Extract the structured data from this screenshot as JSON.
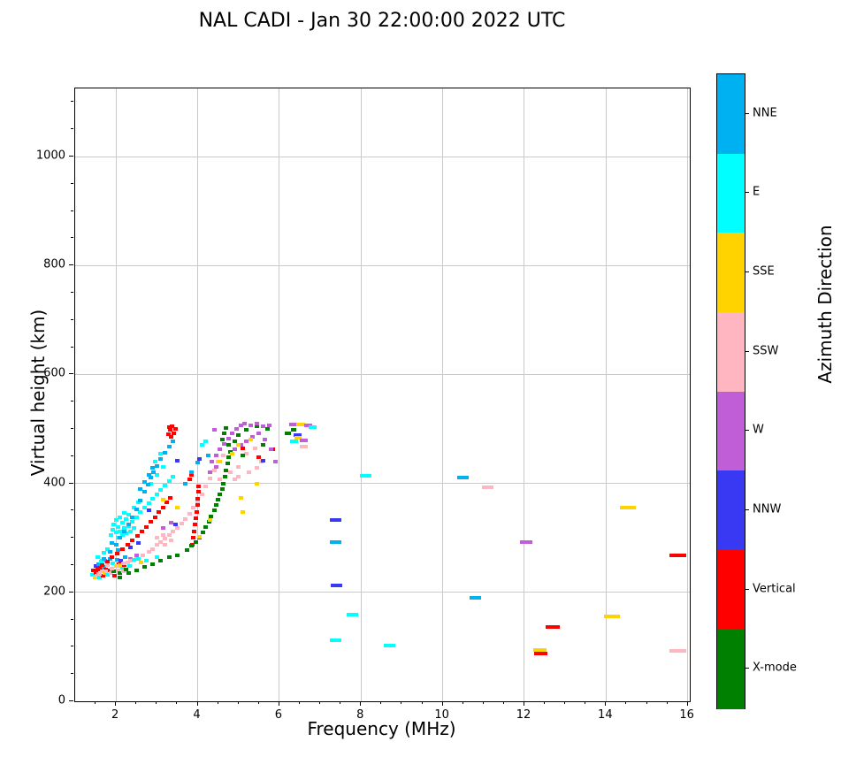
{
  "page": {
    "title": "NAL CADI - Jan 30 22:00:00 2022 UTC"
  },
  "chart_data": {
    "type": "scatter",
    "title": "NAL CADI - Jan 30 22:00:00 2022 UTC",
    "xlabel": "Frequency (MHz)",
    "ylabel": "Virtual height (km)",
    "colorbar_label": "Azimuth Direction",
    "xlim": [
      1.0,
      16.05
    ],
    "ylim": [
      0,
      1125
    ],
    "xticks": [
      2,
      4,
      6,
      8,
      10,
      12,
      14,
      16
    ],
    "yticks": [
      0,
      200,
      400,
      600,
      800,
      1000
    ],
    "x_minor_step": 0.5,
    "y_minor_step": 50,
    "grid": true,
    "legend_position": "right-colorbar",
    "point_units": [
      "frequency_MHz",
      "virtual_height_km",
      "azimuth_code",
      "optional_dash_width_px"
    ],
    "categories": [
      {
        "code": "NNE",
        "label": "NNE",
        "color": "#00b1f2"
      },
      {
        "code": "E",
        "label": "E",
        "color": "#00ffff"
      },
      {
        "code": "SSE",
        "label": "SSE",
        "color": "#ffd300"
      },
      {
        "code": "SSW",
        "label": "SSW",
        "color": "#ffb6c1"
      },
      {
        "code": "W",
        "label": "W",
        "color": "#bf5ed7"
      },
      {
        "code": "NNW",
        "label": "NNW",
        "color": "#3939f3"
      },
      {
        "code": "V",
        "label": "Vertical",
        "color": "#ff0000"
      },
      {
        "code": "X",
        "label": "X-mode",
        "color": "#008000"
      }
    ],
    "points": [
      [
        8.12,
        414,
        "E",
        13
      ],
      [
        7.38,
        332,
        "NNW",
        13
      ],
      [
        7.38,
        293,
        "NNE",
        13
      ],
      [
        7.4,
        213,
        "NNW",
        13
      ],
      [
        7.79,
        159,
        "E",
        13
      ],
      [
        7.38,
        112,
        "E",
        13
      ],
      [
        8.7,
        102,
        "E",
        13
      ],
      [
        10.5,
        411,
        "NNE",
        13
      ],
      [
        11.1,
        393,
        "SSW",
        13
      ],
      [
        12.04,
        293,
        "W",
        14
      ],
      [
        10.8,
        190,
        "NNE",
        13
      ],
      [
        12.69,
        137,
        "V",
        16
      ],
      [
        12.37,
        94,
        "SSE",
        15
      ],
      [
        12.4,
        88,
        "V",
        15
      ],
      [
        14.53,
        356,
        "SSE",
        18
      ],
      [
        15.75,
        268,
        "V",
        19
      ],
      [
        14.15,
        156,
        "SSE",
        18
      ],
      [
        15.75,
        93,
        "SSW",
        19
      ],
      [
        6.33,
        508,
        "W",
        9
      ],
      [
        6.52,
        508,
        "SSE",
        10
      ],
      [
        6.7,
        506,
        "W",
        9
      ],
      [
        6.82,
        503,
        "E",
        9
      ],
      [
        6.45,
        489,
        "NNW",
        9
      ],
      [
        6.45,
        483,
        "SSE",
        8
      ],
      [
        6.35,
        477,
        "E",
        9
      ],
      [
        6.6,
        479,
        "W",
        9
      ],
      [
        6.6,
        468,
        "SSW",
        9
      ],
      [
        6.2,
        492,
        "X",
        7
      ],
      [
        6.35,
        498,
        "X",
        6
      ],
      [
        1.42,
        232,
        "E"
      ],
      [
        1.45,
        240,
        "V"
      ],
      [
        1.48,
        228,
        "SSE"
      ],
      [
        1.5,
        236,
        "V"
      ],
      [
        1.5,
        248,
        "NNW"
      ],
      [
        1.52,
        230,
        "SSW"
      ],
      [
        1.55,
        242,
        "V"
      ],
      [
        1.57,
        252,
        "NNE"
      ],
      [
        1.58,
        233,
        "SSE"
      ],
      [
        1.6,
        228,
        "E"
      ],
      [
        1.62,
        245,
        "V"
      ],
      [
        1.63,
        256,
        "E"
      ],
      [
        1.65,
        238,
        "SSW"
      ],
      [
        1.68,
        230,
        "V"
      ],
      [
        1.7,
        247,
        "NNE"
      ],
      [
        1.72,
        236,
        "SSE"
      ],
      [
        1.73,
        258,
        "W"
      ],
      [
        1.75,
        242,
        "V"
      ],
      [
        1.78,
        232,
        "E"
      ],
      [
        1.8,
        250,
        "SSW"
      ],
      [
        1.82,
        240,
        "V"
      ],
      [
        1.85,
        262,
        "NNE"
      ],
      [
        1.87,
        235,
        "SSW"
      ],
      [
        1.9,
        244,
        "V"
      ],
      [
        1.92,
        254,
        "E"
      ],
      [
        1.95,
        238,
        "X"
      ],
      [
        1.97,
        230,
        "V"
      ],
      [
        2.0,
        248,
        "SSE"
      ],
      [
        2.02,
        260,
        "NNE"
      ],
      [
        2.05,
        240,
        "SSW"
      ],
      [
        2.08,
        252,
        "V"
      ],
      [
        2.1,
        235,
        "X"
      ],
      [
        2.12,
        258,
        "NNW"
      ],
      [
        2.15,
        245,
        "E"
      ],
      [
        2.18,
        238,
        "SSW"
      ],
      [
        2.2,
        250,
        "V"
      ],
      [
        2.22,
        264,
        "NNE"
      ],
      [
        2.25,
        242,
        "X"
      ],
      [
        2.28,
        255,
        "SSW"
      ],
      [
        2.3,
        236,
        "V"
      ],
      [
        2.33,
        248,
        "E"
      ],
      [
        2.35,
        262,
        "W"
      ],
      [
        1.6,
        233,
        "SSW"
      ],
      [
        1.75,
        238,
        "SSW"
      ],
      [
        1.9,
        243,
        "SSW"
      ],
      [
        2.05,
        248,
        "SSW"
      ],
      [
        2.2,
        253,
        "SSW"
      ],
      [
        2.35,
        258,
        "SSW"
      ],
      [
        2.5,
        263,
        "SSW"
      ],
      [
        2.65,
        268,
        "SSW"
      ],
      [
        2.8,
        274,
        "SSW"
      ],
      [
        2.9,
        280,
        "SSW"
      ],
      [
        3.0,
        287,
        "SSW"
      ],
      [
        3.1,
        293,
        "SSW"
      ],
      [
        3.2,
        299,
        "SSW"
      ],
      [
        3.3,
        305,
        "SSW"
      ],
      [
        3.4,
        311,
        "SSW"
      ],
      [
        3.5,
        318,
        "SSW"
      ],
      [
        3.6,
        326,
        "SSW"
      ],
      [
        3.7,
        334,
        "SSW"
      ],
      [
        3.8,
        344,
        "SSW"
      ],
      [
        3.9,
        355,
        "SSW"
      ],
      [
        4.0,
        367,
        "SSW"
      ],
      [
        4.1,
        380,
        "SSW"
      ],
      [
        4.2,
        394,
        "SSW"
      ],
      [
        4.3,
        409,
        "SSW"
      ],
      [
        4.4,
        424,
        "SSW"
      ],
      [
        3.0,
        300,
        "SSW"
      ],
      [
        3.15,
        305,
        "SSW"
      ],
      [
        3.35,
        295,
        "SSW"
      ],
      [
        3.2,
        288,
        "SSW"
      ],
      [
        4.5,
        440,
        "SSW"
      ],
      [
        4.62,
        452,
        "SSW"
      ],
      [
        4.8,
        420,
        "SSW"
      ],
      [
        5.0,
        430,
        "SSW"
      ],
      [
        5.2,
        455,
        "SSW"
      ],
      [
        5.4,
        464,
        "SSW"
      ],
      [
        5.55,
        440,
        "SSW"
      ],
      [
        5.0,
        412,
        "SSW"
      ],
      [
        4.55,
        408,
        "SSW"
      ],
      [
        4.9,
        408,
        "SSW"
      ],
      [
        5.25,
        420,
        "SSW"
      ],
      [
        5.45,
        428,
        "SSW"
      ],
      [
        1.65,
        250,
        "V"
      ],
      [
        1.78,
        257,
        "V"
      ],
      [
        1.9,
        264,
        "V"
      ],
      [
        2.02,
        271,
        "V"
      ],
      [
        2.15,
        279,
        "V"
      ],
      [
        2.28,
        287,
        "V"
      ],
      [
        2.4,
        295,
        "V"
      ],
      [
        2.52,
        303,
        "V"
      ],
      [
        2.64,
        311,
        "V"
      ],
      [
        2.75,
        320,
        "V"
      ],
      [
        2.85,
        329,
        "V"
      ],
      [
        2.95,
        338,
        "V"
      ],
      [
        3.05,
        347,
        "V"
      ],
      [
        3.15,
        356,
        "V"
      ],
      [
        3.25,
        366,
        "V"
      ],
      [
        3.32,
        374,
        "V"
      ],
      [
        3.88,
        288,
        "V"
      ],
      [
        3.9,
        300,
        "V"
      ],
      [
        3.92,
        312,
        "V"
      ],
      [
        3.94,
        324,
        "V"
      ],
      [
        3.96,
        336,
        "V"
      ],
      [
        3.97,
        348,
        "V"
      ],
      [
        3.99,
        360,
        "V"
      ],
      [
        4.0,
        372,
        "V"
      ],
      [
        4.02,
        384,
        "V"
      ],
      [
        4.03,
        395,
        "V"
      ],
      [
        3.8,
        408,
        "V"
      ],
      [
        3.85,
        416,
        "V"
      ],
      [
        3.28,
        490,
        "V"
      ],
      [
        3.33,
        498,
        "V"
      ],
      [
        3.38,
        505,
        "V"
      ],
      [
        3.42,
        492,
        "V"
      ],
      [
        3.35,
        485,
        "V"
      ],
      [
        3.3,
        503,
        "V"
      ],
      [
        3.45,
        500,
        "V"
      ],
      [
        5.1,
        465,
        "V"
      ],
      [
        5.5,
        448,
        "V"
      ],
      [
        5.85,
        462,
        "V"
      ],
      [
        1.88,
        305,
        "E"
      ],
      [
        1.92,
        315,
        "E"
      ],
      [
        1.95,
        325,
        "E"
      ],
      [
        2.0,
        310,
        "E"
      ],
      [
        2.0,
        332,
        "E"
      ],
      [
        2.05,
        300,
        "E"
      ],
      [
        2.05,
        320,
        "E"
      ],
      [
        2.1,
        312,
        "E"
      ],
      [
        2.1,
        338,
        "E"
      ],
      [
        2.15,
        305,
        "E"
      ],
      [
        2.15,
        328,
        "E"
      ],
      [
        2.2,
        318,
        "E"
      ],
      [
        2.25,
        308,
        "E"
      ],
      [
        2.25,
        334,
        "E"
      ],
      [
        2.3,
        322,
        "E"
      ],
      [
        2.35,
        312,
        "E"
      ],
      [
        2.4,
        330,
        "E"
      ],
      [
        2.45,
        318,
        "E"
      ],
      [
        2.3,
        342,
        "E"
      ],
      [
        2.2,
        345,
        "E"
      ],
      [
        2.5,
        338,
        "E"
      ],
      [
        2.6,
        348,
        "E"
      ],
      [
        2.7,
        356,
        "E"
      ],
      [
        2.8,
        364,
        "E"
      ],
      [
        2.9,
        372,
        "E"
      ],
      [
        3.0,
        380,
        "E"
      ],
      [
        3.1,
        388,
        "E"
      ],
      [
        3.2,
        396,
        "E"
      ],
      [
        3.3,
        404,
        "E"
      ],
      [
        3.4,
        412,
        "E"
      ],
      [
        2.55,
        365,
        "E"
      ],
      [
        2.7,
        385,
        "E"
      ],
      [
        2.85,
        400,
        "E"
      ],
      [
        3.0,
        415,
        "E"
      ],
      [
        3.15,
        430,
        "E"
      ],
      [
        2.45,
        355,
        "E"
      ],
      [
        4.1,
        470,
        "E"
      ],
      [
        4.2,
        478,
        "E"
      ],
      [
        2.95,
        440,
        "E"
      ],
      [
        3.1,
        455,
        "E"
      ],
      [
        1.55,
        265,
        "E"
      ],
      [
        1.7,
        272,
        "E"
      ],
      [
        1.8,
        280,
        "E"
      ],
      [
        1.65,
        258,
        "E"
      ],
      [
        2.45,
        260,
        "E"
      ],
      [
        2.55,
        262,
        "E"
      ],
      [
        2.75,
        258,
        "E"
      ],
      [
        3.0,
        265,
        "E"
      ],
      [
        1.7,
        262,
        "NNE"
      ],
      [
        1.85,
        275,
        "NNE"
      ],
      [
        2.0,
        288,
        "NNE"
      ],
      [
        2.1,
        300,
        "NNE"
      ],
      [
        2.2,
        312,
        "NNE"
      ],
      [
        2.3,
        325,
        "NNE"
      ],
      [
        2.4,
        338,
        "NNE"
      ],
      [
        2.5,
        352,
        "NNE"
      ],
      [
        2.6,
        368,
        "NNE"
      ],
      [
        2.7,
        385,
        "NNE"
      ],
      [
        2.78,
        398,
        "NNE"
      ],
      [
        2.85,
        410,
        "NNE"
      ],
      [
        2.92,
        420,
        "NNE"
      ],
      [
        3.0,
        432,
        "NNE"
      ],
      [
        3.1,
        444,
        "NNE"
      ],
      [
        3.2,
        456,
        "NNE"
      ],
      [
        3.3,
        468,
        "NNE"
      ],
      [
        3.4,
        478,
        "NNE"
      ],
      [
        2.6,
        390,
        "NNE"
      ],
      [
        2.7,
        402,
        "NNE"
      ],
      [
        2.8,
        415,
        "NNE"
      ],
      [
        2.9,
        428,
        "NNE"
      ],
      [
        3.7,
        400,
        "NNE"
      ],
      [
        3.85,
        420,
        "NNE"
      ],
      [
        4.0,
        438,
        "NNE"
      ],
      [
        4.25,
        452,
        "NNE"
      ],
      [
        1.9,
        290,
        "NNE"
      ],
      [
        2.05,
        278,
        "NNE"
      ],
      [
        2.1,
        228,
        "X"
      ],
      [
        2.3,
        235,
        "X"
      ],
      [
        2.5,
        240,
        "X"
      ],
      [
        2.7,
        246,
        "X"
      ],
      [
        2.9,
        252,
        "X"
      ],
      [
        3.1,
        258,
        "X"
      ],
      [
        3.3,
        264,
        "X"
      ],
      [
        3.5,
        268,
        "X"
      ],
      [
        3.75,
        278,
        "X"
      ],
      [
        3.85,
        285,
        "X"
      ],
      [
        3.95,
        292,
        "X"
      ],
      [
        4.05,
        300,
        "X"
      ],
      [
        4.12,
        310,
        "X"
      ],
      [
        4.2,
        320,
        "X"
      ],
      [
        4.27,
        330,
        "X"
      ],
      [
        4.33,
        340,
        "X"
      ],
      [
        4.4,
        350,
        "X"
      ],
      [
        4.45,
        360,
        "X"
      ],
      [
        4.5,
        370,
        "X"
      ],
      [
        4.55,
        380,
        "X"
      ],
      [
        4.6,
        390,
        "X"
      ],
      [
        4.63,
        400,
        "X"
      ],
      [
        4.67,
        412,
        "X"
      ],
      [
        4.7,
        424,
        "X"
      ],
      [
        4.73,
        436,
        "X"
      ],
      [
        4.76,
        448,
        "X"
      ],
      [
        4.6,
        480,
        "X"
      ],
      [
        4.65,
        492,
        "X"
      ],
      [
        4.7,
        502,
        "X"
      ],
      [
        4.75,
        470,
        "X"
      ],
      [
        4.8,
        458,
        "X"
      ],
      [
        5.0,
        488,
        "X"
      ],
      [
        5.2,
        498,
        "X"
      ],
      [
        5.45,
        505,
        "X"
      ],
      [
        5.7,
        500,
        "X"
      ],
      [
        4.9,
        478,
        "X"
      ],
      [
        5.1,
        452,
        "X"
      ],
      [
        5.6,
        470,
        "X"
      ],
      [
        6.2,
        492,
        "X"
      ],
      [
        6.35,
        498,
        "X"
      ],
      [
        4.35,
        440,
        "W"
      ],
      [
        4.45,
        452,
        "W"
      ],
      [
        4.55,
        462,
        "W"
      ],
      [
        4.65,
        472,
        "W"
      ],
      [
        4.75,
        482,
        "W"
      ],
      [
        4.85,
        492,
        "W"
      ],
      [
        4.95,
        500,
        "W"
      ],
      [
        5.05,
        506,
        "W"
      ],
      [
        5.15,
        509,
        "W"
      ],
      [
        5.3,
        507,
        "W"
      ],
      [
        5.45,
        509,
        "W"
      ],
      [
        5.6,
        505,
        "W"
      ],
      [
        5.75,
        507,
        "W"
      ],
      [
        5.5,
        492,
        "W"
      ],
      [
        5.35,
        485,
        "W"
      ],
      [
        5.2,
        478,
        "W"
      ],
      [
        5.65,
        480,
        "W"
      ],
      [
        5.05,
        470,
        "W"
      ],
      [
        4.9,
        462,
        "W"
      ],
      [
        5.8,
        462,
        "W"
      ],
      [
        5.9,
        440,
        "W"
      ],
      [
        4.45,
        430,
        "W"
      ],
      [
        4.3,
        420,
        "W"
      ],
      [
        3.35,
        328,
        "W"
      ],
      [
        3.15,
        318,
        "W"
      ],
      [
        2.5,
        268,
        "W"
      ],
      [
        4.4,
        498,
        "W"
      ],
      [
        2.1,
        250,
        "SSE"
      ],
      [
        2.62,
        255,
        "SSE"
      ],
      [
        3.15,
        370,
        "SSE"
      ],
      [
        3.5,
        356,
        "SSE"
      ],
      [
        4.05,
        302,
        "SSE"
      ],
      [
        4.3,
        332,
        "SSE"
      ],
      [
        4.55,
        440,
        "SSE"
      ],
      [
        4.85,
        455,
        "SSE"
      ],
      [
        5.0,
        470,
        "SSE"
      ],
      [
        5.3,
        480,
        "SSE"
      ],
      [
        5.05,
        373,
        "SSE"
      ],
      [
        5.1,
        347,
        "SSE"
      ],
      [
        5.45,
        400,
        "SSE"
      ],
      [
        2.35,
        282,
        "NNW"
      ],
      [
        2.8,
        350,
        "NNW"
      ],
      [
        3.45,
        325,
        "NNW"
      ],
      [
        3.5,
        442,
        "NNW"
      ],
      [
        4.05,
        445,
        "NNW"
      ],
      [
        2.55,
        290,
        "NNW"
      ],
      [
        5.6,
        442,
        "NNW"
      ]
    ]
  }
}
